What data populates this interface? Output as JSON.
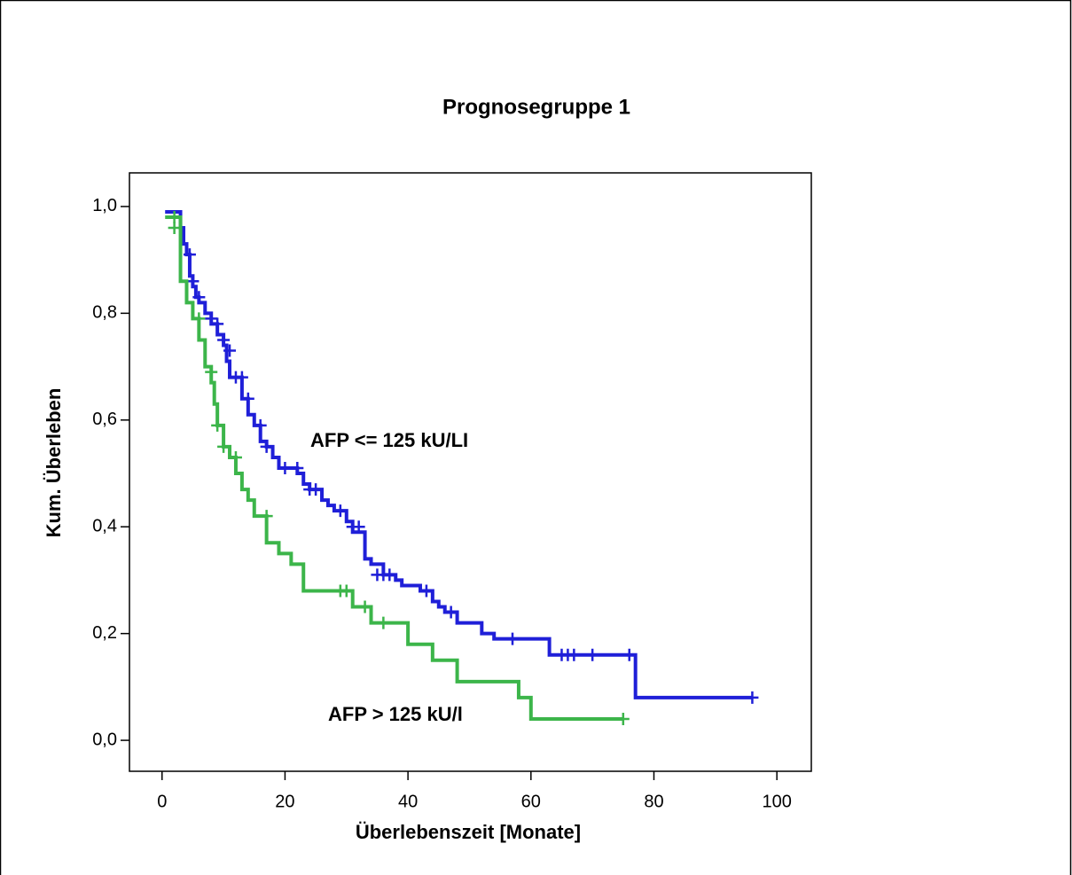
{
  "chart_data": {
    "type": "kaplan-meier",
    "title": "Prognosegruppe 1",
    "x_label": "Überlebenszeit [Monate]",
    "y_label": "Kum. Überleben",
    "xlim": [
      -5.3,
      105.6
    ],
    "ylim": [
      -0.058,
      1.063
    ],
    "xticks": [
      0,
      20,
      40,
      60,
      80,
      100
    ],
    "yticks": [
      {
        "value": 0,
        "label": "0,0"
      },
      {
        "value": 0.2,
        "label": "0,2"
      },
      {
        "value": 0.4,
        "label": "0,4"
      },
      {
        "value": 0.6,
        "label": "0,6"
      },
      {
        "value": 0.8,
        "label": "0,8"
      },
      {
        "value": 1.0,
        "label": "1,0"
      }
    ],
    "series": [
      {
        "name": "AFP <= 125 kU/LI",
        "color": "#1f1fd8",
        "x": [
          0.5,
          3,
          3.5,
          4,
          4.5,
          5,
          5.5,
          6,
          7,
          8,
          9,
          10,
          10.5,
          11,
          13,
          14,
          15,
          16,
          17,
          18,
          19,
          22,
          23,
          24,
          26,
          27,
          28,
          30,
          31,
          33,
          34,
          36,
          38,
          39,
          42,
          44,
          45,
          46,
          48,
          52,
          54,
          63,
          77,
          96
        ],
        "values": [
          0.99,
          0.96,
          0.93,
          0.91,
          0.87,
          0.85,
          0.83,
          0.82,
          0.8,
          0.78,
          0.76,
          0.74,
          0.71,
          0.68,
          0.64,
          0.61,
          0.59,
          0.56,
          0.55,
          0.53,
          0.51,
          0.5,
          0.48,
          0.47,
          0.45,
          0.44,
          0.43,
          0.41,
          0.39,
          0.34,
          0.33,
          0.31,
          0.3,
          0.29,
          0.28,
          0.26,
          0.25,
          0.24,
          0.22,
          0.2,
          0.19,
          0.16,
          0.08,
          0.08
        ],
        "censor_x": [
          4.5,
          5,
          6,
          8,
          9,
          10,
          11,
          12,
          13,
          14,
          16,
          17,
          20,
          22,
          24,
          25,
          29,
          31,
          32,
          35,
          36,
          37,
          43,
          47,
          57,
          65,
          66,
          67,
          70,
          76,
          96
        ],
        "censor_values": [
          0.91,
          0.86,
          0.83,
          0.79,
          0.78,
          0.75,
          0.73,
          0.68,
          0.68,
          0.64,
          0.59,
          0.55,
          0.51,
          0.51,
          0.47,
          0.47,
          0.43,
          0.4,
          0.4,
          0.31,
          0.31,
          0.31,
          0.28,
          0.24,
          0.19,
          0.16,
          0.16,
          0.16,
          0.16,
          0.16,
          0.08
        ]
      },
      {
        "name": "AFP > 125 kU/l",
        "color": "#3cb54a",
        "x": [
          0.5,
          3,
          4,
          5,
          6,
          7,
          8,
          8.5,
          9,
          10,
          11,
          12,
          13,
          14,
          15,
          17,
          19,
          21,
          23,
          31,
          34,
          40,
          44,
          48,
          58,
          60,
          75
        ],
        "values": [
          0.98,
          0.86,
          0.82,
          0.79,
          0.75,
          0.7,
          0.67,
          0.63,
          0.59,
          0.55,
          0.53,
          0.5,
          0.47,
          0.45,
          0.42,
          0.37,
          0.35,
          0.33,
          0.28,
          0.25,
          0.22,
          0.18,
          0.15,
          0.11,
          0.08,
          0.04,
          0.04
        ],
        "censor_x": [
          2,
          2,
          6,
          8,
          9,
          10,
          12,
          17,
          29,
          30,
          33,
          36,
          75
        ],
        "censor_values": [
          0.98,
          0.96,
          0.79,
          0.69,
          0.59,
          0.55,
          0.53,
          0.42,
          0.28,
          0.28,
          0.25,
          0.22,
          0.04
        ]
      }
    ]
  }
}
